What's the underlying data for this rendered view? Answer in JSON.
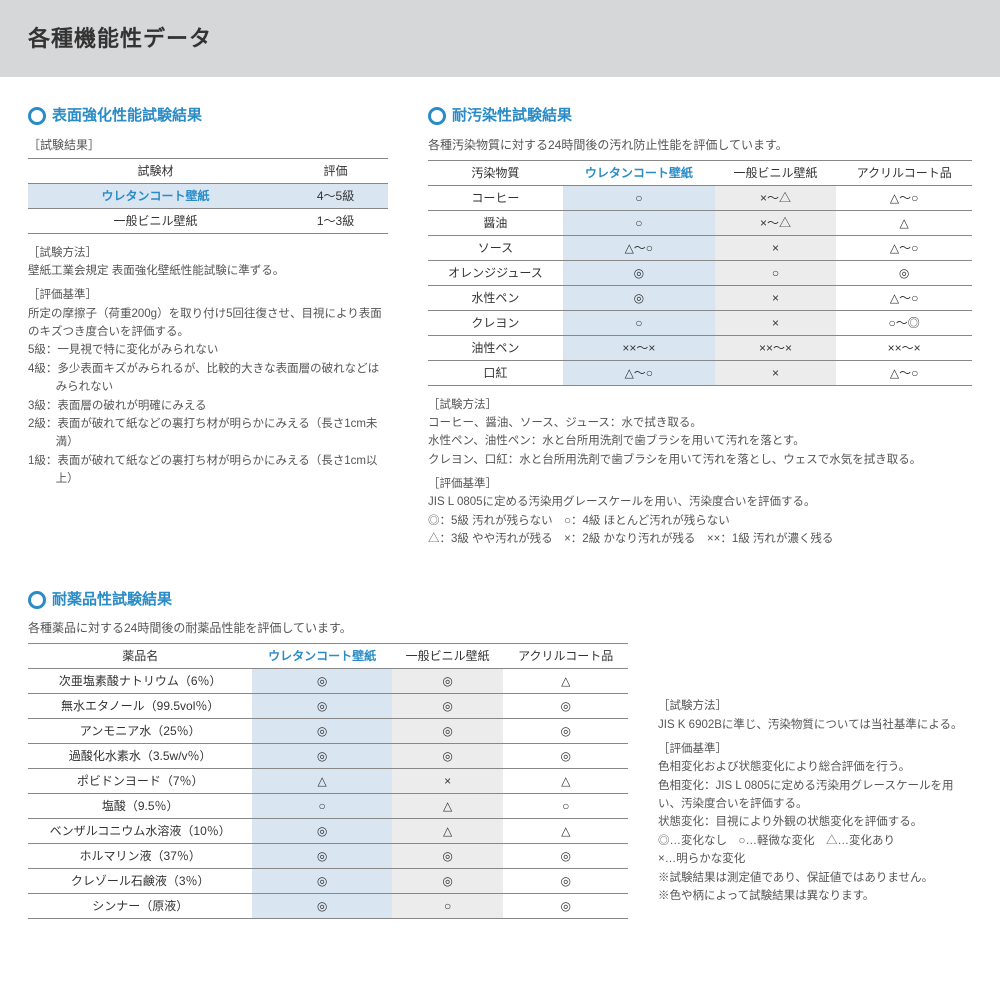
{
  "page_title": "各種機能性データ",
  "colors": {
    "accent": "#2a8cc7",
    "header_bg": "#d6d7d8",
    "highlight_blue_bg": "#d9e6f2",
    "gray_bg": "#ececec",
    "border": "#888888",
    "text": "#333333",
    "muted": "#555555"
  },
  "section1": {
    "title": "表面強化性能試験結果",
    "results_label": "［試験結果］",
    "columns": [
      "試験材",
      "評価"
    ],
    "rows": [
      {
        "name": "ウレタンコート壁紙",
        "value": "4～5級",
        "highlight": true
      },
      {
        "name": "一般ビニル壁紙",
        "value": "1～3級",
        "highlight": false
      }
    ],
    "method_label": "［試験方法］",
    "method_text": "壁紙工業会規定 表面強化壁紙性能試験に準ずる。",
    "criteria_label": "［評価基準］",
    "criteria_intro": "所定の摩擦子（荷重200g）を取り付け5回往復させ、目視により表面のキズつき度合いを評価する。",
    "grades": [
      "5級：一見視で特に変化がみられない",
      "4級：多少表面キズがみられるが、比較的大きな表面層の破れなどはみられない",
      "3級：表面層の破れが明確にみえる",
      "2級：表面が破れて紙などの裏打ち材が明らかにみえる（長さ1cm未満）",
      "1級：表面が破れて紙などの裏打ち材が明らかにみえる（長さ1cm以上）"
    ]
  },
  "section2": {
    "title": "耐汚染性試験結果",
    "intro": "各種汚染物質に対する24時間後の汚れ防止性能を評価しています。",
    "columns": [
      "汚染物質",
      "ウレタンコート壁紙",
      "一般ビニル壁紙",
      "アクリルコート品"
    ],
    "rows": [
      [
        "コーヒー",
        "○",
        "×～△",
        "△～○"
      ],
      [
        "醤油",
        "○",
        "×～△",
        "△"
      ],
      [
        "ソース",
        "△～○",
        "×",
        "△～○"
      ],
      [
        "オレンジジュース",
        "◎",
        "○",
        "◎"
      ],
      [
        "水性ペン",
        "◎",
        "×",
        "△～○"
      ],
      [
        "クレヨン",
        "○",
        "×",
        "○～◎"
      ],
      [
        "油性ペン",
        "××～×",
        "××～×",
        "××～×"
      ],
      [
        "口紅",
        "△～○",
        "×",
        "△～○"
      ]
    ],
    "method_label": "［試験方法］",
    "method_lines": [
      "コーヒー、醤油、ソース、ジュース：水で拭き取る。",
      "水性ペン、油性ペン：水と台所用洗剤で歯ブラシを用いて汚れを落とす。",
      "クレヨン、口紅：水と台所用洗剤で歯ブラシを用いて汚れを落とし、ウェスで水気を拭き取る。"
    ],
    "criteria_label": "［評価基準］",
    "criteria_line": "JIS L 0805に定める汚染用グレースケールを用い、汚染度合いを評価する。",
    "legend_lines": [
      "◎：5級 汚れが残らない　○：4級 ほとんど汚れが残らない",
      "△：3級 やや汚れが残る　×：2級 かなり汚れが残る　××：1級 汚れが濃く残る"
    ]
  },
  "section3": {
    "title": "耐薬品性試験結果",
    "intro": "各種薬品に対する24時間後の耐薬品性能を評価しています。",
    "columns": [
      "薬品名",
      "ウレタンコート壁紙",
      "一般ビニル壁紙",
      "アクリルコート品"
    ],
    "rows": [
      [
        "次亜塩素酸ナトリウム（6％）",
        "◎",
        "◎",
        "△"
      ],
      [
        "無水エタノール（99.5vol％）",
        "◎",
        "◎",
        "◎"
      ],
      [
        "アンモニア水（25％）",
        "◎",
        "◎",
        "◎"
      ],
      [
        "過酸化水素水（3.5w/v％）",
        "◎",
        "◎",
        "◎"
      ],
      [
        "ポビドンヨード（7％）",
        "△",
        "×",
        "△"
      ],
      [
        "塩酸（9.5％）",
        "○",
        "△",
        "○"
      ],
      [
        "ベンザルコニウム水溶液（10％）",
        "◎",
        "△",
        "△"
      ],
      [
        "ホルマリン液（37％）",
        "◎",
        "◎",
        "◎"
      ],
      [
        "クレゾール石鹸液（3％）",
        "◎",
        "◎",
        "◎"
      ],
      [
        "シンナー（原液）",
        "◎",
        "○",
        "◎"
      ]
    ],
    "side": {
      "method_label": "［試験方法］",
      "method_text": "JIS K 6902Bに準じ、汚染物質については当社基準による。",
      "criteria_label": "［評価基準］",
      "criteria_lines": [
        "色相変化および状態変化により総合評価を行う。",
        "色相変化：JIS L 0805に定める汚染用グレースケールを用い、汚染度合いを評価する。",
        "状態変化：目視により外観の状態変化を評価する。",
        "◎…変化なし　○…軽微な変化　△…変化あり",
        "×…明らかな変化",
        "※試験結果は測定値であり、保証値ではありません。",
        "※色や柄によって試験結果は異なります。"
      ]
    }
  }
}
